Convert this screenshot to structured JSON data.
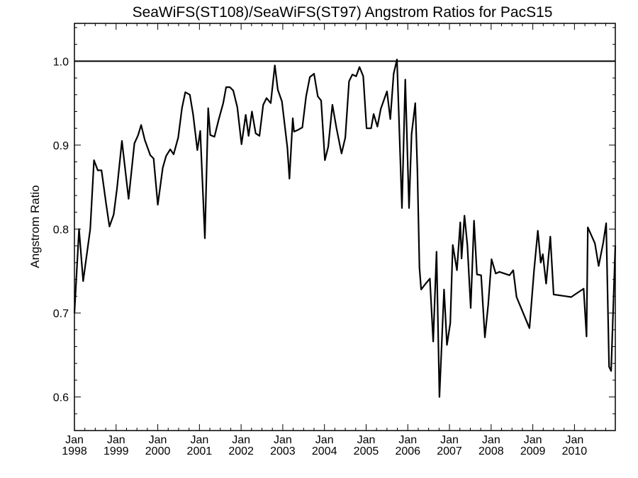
{
  "chart_data": {
    "type": "line",
    "title": "SeaWiFS(ST108)/SeaWiFS(ST97)  Angstrom Ratios for PacS15",
    "xlabel": "",
    "ylabel": "Angstrom Ratio",
    "xlim": [
      1998.0,
      2010.98
    ],
    "ylim": [
      0.56,
      1.045
    ],
    "reference_line": 1.0,
    "grid": false,
    "y_ticks": [
      "0.6",
      "0.7",
      "0.8",
      "0.9",
      "1.0"
    ],
    "x_tick_labels": [
      {
        "month": "Jan",
        "year": "1998"
      },
      {
        "month": "Jan",
        "year": "1999"
      },
      {
        "month": "Jan",
        "year": "2000"
      },
      {
        "month": "Jan",
        "year": "2001"
      },
      {
        "month": "Jan",
        "year": "2002"
      },
      {
        "month": "Jan",
        "year": "2003"
      },
      {
        "month": "Jan",
        "year": "2004"
      },
      {
        "month": "Jan",
        "year": "2005"
      },
      {
        "month": "Jan",
        "year": "2006"
      },
      {
        "month": "Jan",
        "year": "2007"
      },
      {
        "month": "Jan",
        "year": "2008"
      },
      {
        "month": "Jan",
        "year": "2009"
      },
      {
        "month": "Jan",
        "year": "2010"
      }
    ],
    "series": [
      {
        "color": "#000000",
        "points": [
          [
            1998.0,
            0.7
          ],
          [
            1998.11,
            0.8
          ],
          [
            1998.21,
            0.738
          ],
          [
            1998.38,
            0.8
          ],
          [
            1998.47,
            0.882
          ],
          [
            1998.56,
            0.87
          ],
          [
            1998.65,
            0.87
          ],
          [
            1998.76,
            0.83
          ],
          [
            1998.84,
            0.803
          ],
          [
            1998.94,
            0.817
          ],
          [
            1999.02,
            0.848
          ],
          [
            1999.14,
            0.905
          ],
          [
            1999.23,
            0.866
          ],
          [
            1999.3,
            0.836
          ],
          [
            1999.44,
            0.902
          ],
          [
            1999.53,
            0.912
          ],
          [
            1999.6,
            0.924
          ],
          [
            1999.69,
            0.906
          ],
          [
            1999.82,
            0.888
          ],
          [
            1999.9,
            0.884
          ],
          [
            2000.0,
            0.829
          ],
          [
            2000.12,
            0.873
          ],
          [
            2000.2,
            0.887
          ],
          [
            2000.3,
            0.895
          ],
          [
            2000.38,
            0.889
          ],
          [
            2000.49,
            0.909
          ],
          [
            2000.58,
            0.944
          ],
          [
            2000.66,
            0.963
          ],
          [
            2000.77,
            0.96
          ],
          [
            2000.85,
            0.936
          ],
          [
            2000.95,
            0.894
          ],
          [
            2001.02,
            0.917
          ],
          [
            2001.13,
            0.789
          ],
          [
            2001.21,
            0.944
          ],
          [
            2001.26,
            0.912
          ],
          [
            2001.36,
            0.91
          ],
          [
            2001.46,
            0.93
          ],
          [
            2001.57,
            0.95
          ],
          [
            2001.64,
            0.969
          ],
          [
            2001.73,
            0.969
          ],
          [
            2001.81,
            0.965
          ],
          [
            2001.91,
            0.945
          ],
          [
            2002.01,
            0.901
          ],
          [
            2002.11,
            0.936
          ],
          [
            2002.18,
            0.911
          ],
          [
            2002.26,
            0.94
          ],
          [
            2002.35,
            0.914
          ],
          [
            2002.44,
            0.911
          ],
          [
            2002.53,
            0.948
          ],
          [
            2002.61,
            0.956
          ],
          [
            2002.71,
            0.95
          ],
          [
            2002.81,
            0.995
          ],
          [
            2002.88,
            0.966
          ],
          [
            2002.98,
            0.952
          ],
          [
            2003.11,
            0.897
          ],
          [
            2003.16,
            0.86
          ],
          [
            2003.24,
            0.932
          ],
          [
            2003.27,
            0.916
          ],
          [
            2003.36,
            0.918
          ],
          [
            2003.47,
            0.921
          ],
          [
            2003.56,
            0.958
          ],
          [
            2003.65,
            0.981
          ],
          [
            2003.75,
            0.985
          ],
          [
            2003.84,
            0.958
          ],
          [
            2003.92,
            0.953
          ],
          [
            2004.01,
            0.882
          ],
          [
            2004.09,
            0.898
          ],
          [
            2004.19,
            0.948
          ],
          [
            2004.29,
            0.92
          ],
          [
            2004.41,
            0.89
          ],
          [
            2004.5,
            0.909
          ],
          [
            2004.59,
            0.976
          ],
          [
            2004.67,
            0.984
          ],
          [
            2004.76,
            0.982
          ],
          [
            2004.84,
            0.993
          ],
          [
            2004.93,
            0.982
          ],
          [
            2005.01,
            0.92
          ],
          [
            2005.12,
            0.92
          ],
          [
            2005.18,
            0.937
          ],
          [
            2005.27,
            0.922
          ],
          [
            2005.35,
            0.943
          ],
          [
            2005.5,
            0.964
          ],
          [
            2005.58,
            0.931
          ],
          [
            2005.66,
            0.985
          ],
          [
            2005.74,
            1.002
          ],
          [
            2005.86,
            0.825
          ],
          [
            2005.94,
            0.978
          ],
          [
            2006.03,
            0.825
          ],
          [
            2006.09,
            0.913
          ],
          [
            2006.18,
            0.95
          ],
          [
            2006.23,
            0.87
          ],
          [
            2006.28,
            0.754
          ],
          [
            2006.32,
            0.728
          ],
          [
            2006.43,
            0.735
          ],
          [
            2006.53,
            0.741
          ],
          [
            2006.61,
            0.666
          ],
          [
            2006.69,
            0.773
          ],
          [
            2006.76,
            0.6
          ],
          [
            2006.87,
            0.728
          ],
          [
            2006.94,
            0.662
          ],
          [
            2007.02,
            0.688
          ],
          [
            2007.08,
            0.781
          ],
          [
            2007.18,
            0.751
          ],
          [
            2007.26,
            0.808
          ],
          [
            2007.29,
            0.765
          ],
          [
            2007.36,
            0.816
          ],
          [
            2007.43,
            0.781
          ],
          [
            2007.51,
            0.706
          ],
          [
            2007.59,
            0.81
          ],
          [
            2007.66,
            0.746
          ],
          [
            2007.76,
            0.745
          ],
          [
            2007.85,
            0.671
          ],
          [
            2007.93,
            0.71
          ],
          [
            2008.01,
            0.764
          ],
          [
            2008.11,
            0.747
          ],
          [
            2008.2,
            0.749
          ],
          [
            2008.44,
            0.745
          ],
          [
            2008.53,
            0.751
          ],
          [
            2008.61,
            0.719
          ],
          [
            2008.71,
            0.707
          ],
          [
            2008.92,
            0.682
          ],
          [
            2009.03,
            0.751
          ],
          [
            2009.12,
            0.798
          ],
          [
            2009.19,
            0.76
          ],
          [
            2009.24,
            0.77
          ],
          [
            2009.32,
            0.735
          ],
          [
            2009.42,
            0.791
          ],
          [
            2009.5,
            0.722
          ],
          [
            2009.79,
            0.72
          ],
          [
            2009.92,
            0.719
          ],
          [
            2010.22,
            0.729
          ],
          [
            2010.29,
            0.672
          ],
          [
            2010.32,
            0.802
          ],
          [
            2010.49,
            0.783
          ],
          [
            2010.58,
            0.756
          ],
          [
            2010.69,
            0.784
          ],
          [
            2010.76,
            0.807
          ],
          [
            2010.83,
            0.636
          ],
          [
            2010.88,
            0.631
          ],
          [
            2010.98,
            0.78
          ]
        ]
      }
    ]
  }
}
